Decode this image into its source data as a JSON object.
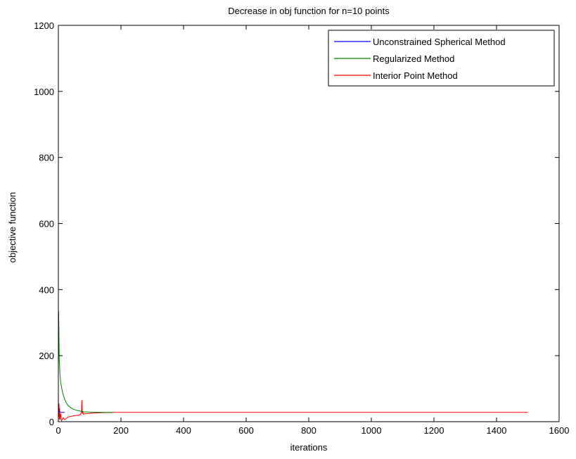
{
  "chart_data": {
    "type": "line",
    "title": "Decrease in obj function for n=10 points",
    "xlabel": "iterations",
    "ylabel": "objective function",
    "xlim": [
      0,
      1600
    ],
    "ylim": [
      0,
      1200
    ],
    "xticks": [
      0,
      200,
      400,
      600,
      800,
      1000,
      1200,
      1400,
      1600
    ],
    "yticks": [
      0,
      200,
      400,
      600,
      800,
      1000,
      1200
    ],
    "grid": false,
    "legend_position": "top-right",
    "series": [
      {
        "name": "Unconstrained Spherical Method",
        "color": "#0000ff",
        "x": [
          0,
          1,
          2,
          3,
          5,
          8,
          10,
          15,
          20
        ],
        "y": [
          60,
          40,
          32,
          30,
          29,
          28.5,
          28.3,
          28.2,
          28.2
        ]
      },
      {
        "name": "Regularized Method",
        "color": "#008000",
        "x": [
          0,
          1,
          2,
          3,
          5,
          8,
          12,
          16,
          20,
          25,
          30,
          40,
          50,
          60,
          70,
          80,
          100,
          120,
          140,
          160,
          175
        ],
        "y": [
          150,
          335,
          250,
          190,
          145,
          115,
          95,
          80,
          68,
          58,
          50,
          42,
          37,
          34,
          32,
          30,
          29,
          28.6,
          28.4,
          28.3,
          28.2
        ]
      },
      {
        "name": "Interior Point Method",
        "color": "#ff0000",
        "x": [
          0,
          1,
          2,
          3,
          4,
          5,
          7,
          10,
          15,
          20,
          30,
          40,
          50,
          60,
          70,
          74,
          75,
          76,
          78,
          80,
          90,
          100,
          120,
          140,
          160,
          175,
          200,
          400,
          600,
          800,
          1000,
          1200,
          1400,
          1500
        ],
        "y": [
          70,
          15,
          55,
          8,
          40,
          5,
          25,
          3,
          12,
          6,
          14,
          16,
          18,
          19,
          21,
          30,
          65,
          24,
          32,
          23,
          24.5,
          25,
          26.5,
          27.5,
          28,
          28.2,
          28.2,
          28.2,
          28.2,
          28.2,
          28.2,
          28.2,
          28.2,
          28.2
        ]
      }
    ]
  }
}
